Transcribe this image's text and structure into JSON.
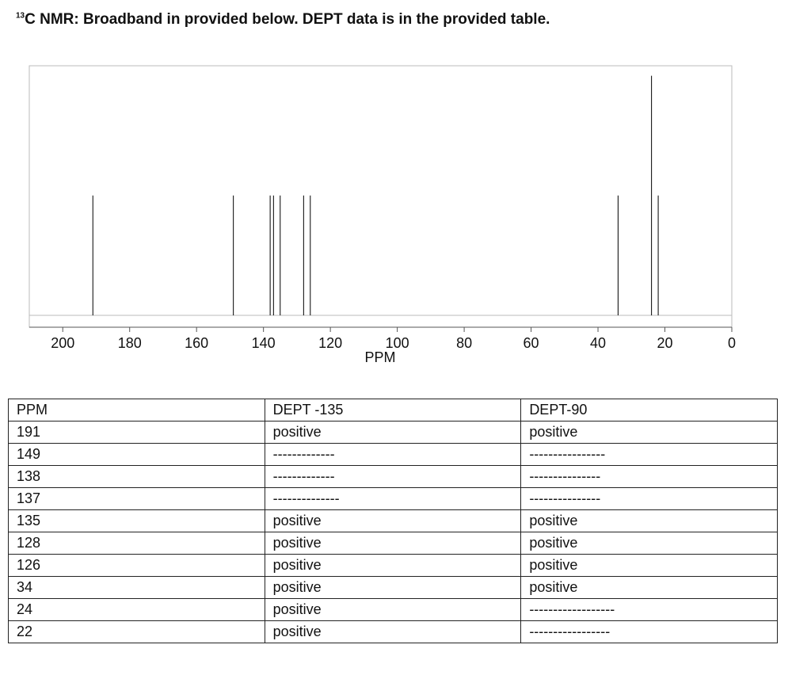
{
  "header": {
    "superscript": "13",
    "title": "C NMR: Broadband in provided below. DEPT data is in the provided table."
  },
  "chart_data": {
    "type": "stick",
    "x_label": "PPM",
    "x": [
      191,
      149,
      138,
      137,
      135,
      128,
      126,
      34,
      24,
      22
    ],
    "values": [
      48,
      48,
      48,
      48,
      48,
      48,
      48,
      48,
      96,
      48
    ],
    "color": "#000000",
    "xlim": [
      210,
      0
    ],
    "xticks": [
      200,
      180,
      160,
      140,
      120,
      100,
      80,
      60,
      40,
      20,
      0
    ],
    "ylim": [
      0,
      100
    ]
  },
  "table": {
    "columns": [
      "PPM",
      "DEPT -135",
      "DEPT-90"
    ],
    "rows": [
      [
        "191",
        "positive",
        "positive"
      ],
      [
        "149",
        "-------------",
        "----------------"
      ],
      [
        "138",
        "-------------",
        "---------------"
      ],
      [
        "137",
        "--------------",
        "---------------"
      ],
      [
        "135",
        "positive",
        "positive"
      ],
      [
        "128",
        "positive",
        "positive"
      ],
      [
        "126",
        "positive",
        "positive"
      ],
      [
        "34",
        "positive",
        "positive"
      ],
      [
        "24",
        "positive",
        "------------------"
      ],
      [
        "22",
        "positive",
        "-----------------"
      ]
    ]
  }
}
